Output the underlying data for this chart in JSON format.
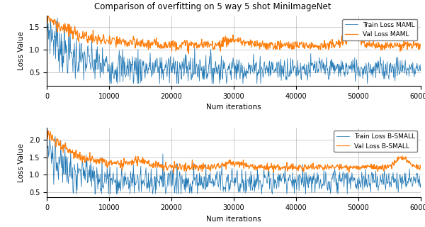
{
  "title": "Comparison of overfitting on 5 way 5 shot MiniImageNet",
  "xlabel": "Num iterations",
  "ylabel": "Loss Value",
  "xlim": [
    0,
    60000
  ],
  "num_points": 800,
  "maml_train_color": "#1f77b4",
  "maml_val_color": "#ff7f0e",
  "bsmall_train_color": "#1f77b4",
  "bsmall_val_color": "#ff7f0e",
  "maml_train_label": "Train Loss MAML",
  "maml_val_label": "Val Loss MAML",
  "bsmall_train_label": "Train Loss B-SMALL",
  "bsmall_val_label": "Val Loss B-SMALL",
  "maml_ylim": [
    0.2,
    1.75
  ],
  "bsmall_ylim": [
    0.35,
    2.35
  ],
  "maml_yticks": [
    0.5,
    1.0,
    1.5
  ],
  "bsmall_yticks": [
    0.5,
    1.0,
    1.5,
    2.0
  ],
  "xticks": [
    0,
    10000,
    20000,
    30000,
    40000,
    50000,
    60000
  ],
  "xticklabels": [
    "0",
    "10000",
    "20000",
    "30000",
    "40000",
    "50000",
    "60000"
  ]
}
